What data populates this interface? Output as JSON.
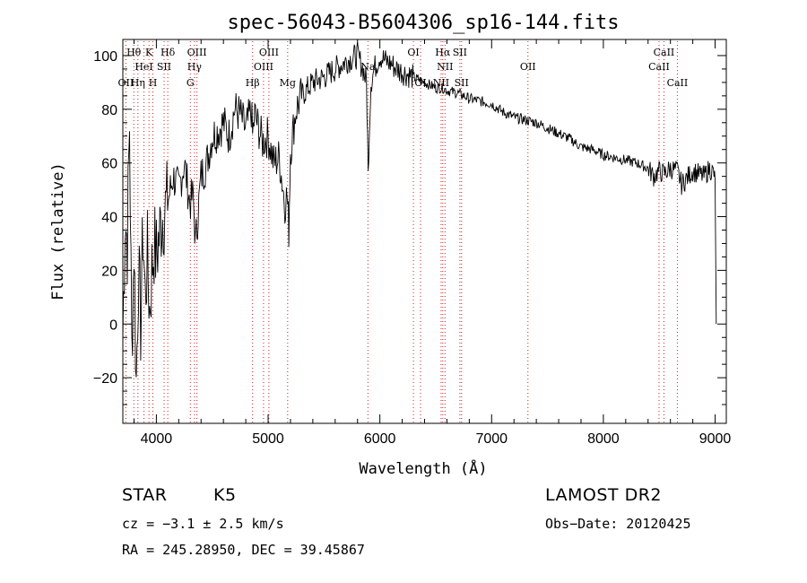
{
  "chart_data": {
    "type": "line",
    "title": "spec-56043-B5604306_sp16-144.fits",
    "xlabel": "Wavelength (Å)",
    "ylabel": "Flux (relative)",
    "xlim": [
      3700,
      9100
    ],
    "ylim": [
      -37,
      106
    ],
    "x_ticks": [
      4000,
      5000,
      6000,
      7000,
      8000,
      9000
    ],
    "y_ticks": [
      -20,
      0,
      20,
      40,
      60,
      80,
      100
    ],
    "grid": false,
    "series": [
      {
        "x": [
          3700,
          3720,
          3740,
          3760,
          3780,
          3800,
          3820,
          3840,
          3860,
          3880,
          3900,
          3920,
          3940,
          3960,
          3980,
          4000,
          4050,
          4100,
          4150,
          4200,
          4250,
          4300,
          4330,
          4350,
          4380,
          4400,
          4450,
          4500,
          4550,
          4600,
          4650,
          4700,
          4750,
          4800,
          4850,
          4861,
          4880,
          4900,
          4950,
          5000,
          5050,
          5100,
          5150,
          5170,
          5185,
          5200,
          5250,
          5300,
          5400,
          5500,
          5600,
          5700,
          5800,
          5850,
          5880,
          5890,
          5895,
          5900,
          5920,
          5950,
          6000,
          6050,
          6100,
          6150,
          6200,
          6300,
          6400,
          6500,
          6563,
          6600,
          6700,
          6800,
          6900,
          7000,
          7100,
          7200,
          7300,
          7400,
          7500,
          7600,
          7700,
          7800,
          7900,
          8000,
          8100,
          8200,
          8300,
          8400,
          8450,
          8498,
          8542,
          8600,
          8662,
          8700,
          8800,
          8900,
          8950,
          8990,
          9000,
          9010
        ],
        "y": [
          -5,
          40,
          30,
          75,
          -10,
          30,
          -22,
          20,
          0,
          35,
          10,
          25,
          5,
          20,
          30,
          25,
          40,
          45,
          55,
          50,
          60,
          45,
          48,
          30,
          45,
          55,
          60,
          70,
          72,
          75,
          70,
          80,
          78,
          72,
          80,
          70,
          78,
          75,
          68,
          70,
          60,
          62,
          45,
          48,
          35,
          65,
          80,
          85,
          90,
          92,
          95,
          98,
          100,
          95,
          90,
          70,
          55,
          65,
          90,
          95,
          100,
          98,
          97,
          95,
          94,
          92,
          90,
          88,
          88,
          87,
          86,
          84,
          83,
          82,
          79,
          77,
          76,
          75,
          73,
          71,
          69,
          66,
          65,
          63,
          62,
          61,
          60,
          58,
          55,
          57,
          56,
          58,
          57,
          52,
          57,
          55,
          58,
          56,
          52,
          0
        ]
      }
    ],
    "lines": [
      {
        "label": "OII",
        "x": 3727,
        "row": 3
      },
      {
        "label": "Hθ",
        "x": 3798,
        "row": 1
      },
      {
        "label": "Hη",
        "x": 3835,
        "row": 3
      },
      {
        "label": "HeI",
        "x": 3889,
        "row": 2
      },
      {
        "label": "K",
        "x": 3934,
        "row": 1
      },
      {
        "label": "SII",
        "x": 4069,
        "row": 2
      },
      {
        "label": "H",
        "x": 3969,
        "row": 3
      },
      {
        "label": "Hδ",
        "x": 4102,
        "row": 1
      },
      {
        "label": "OIII",
        "x": 4363,
        "row": 1
      },
      {
        "label": "Hγ",
        "x": 4341,
        "row": 2
      },
      {
        "label": "G",
        "x": 4304,
        "row": 3
      },
      {
        "label": "Hβ",
        "x": 4861,
        "row": 3
      },
      {
        "label": "OIII",
        "x": 4959,
        "row": 2
      },
      {
        "label": "OIII",
        "x": 5007,
        "row": 1
      },
      {
        "label": "Mg",
        "x": 5175,
        "row": 3
      },
      {
        "label": "Na",
        "x": 5893,
        "row": 2
      },
      {
        "label": "OI",
        "x": 6300,
        "row": 1
      },
      {
        "label": "OI",
        "x": 6364,
        "row": 3
      },
      {
        "label": "NII",
        "x": 6548,
        "row": 3
      },
      {
        "label": "Hα",
        "x": 6563,
        "row": 1
      },
      {
        "label": "NII",
        "x": 6583,
        "row": 2
      },
      {
        "label": "SII",
        "x": 6716,
        "row": 1
      },
      {
        "label": "SII",
        "x": 6731,
        "row": 3
      },
      {
        "label": "OII",
        "x": 7325,
        "row": 2
      },
      {
        "label": "CaII",
        "x": 8498,
        "row": 2
      },
      {
        "label": "CaII",
        "x": 8542,
        "row": 1
      },
      {
        "label": "CaII",
        "x": 8662,
        "row": 3
      }
    ]
  },
  "info": {
    "object_class": "STAR",
    "subclass": "K5",
    "survey": "LAMOST DR2",
    "cz": "cz = −3.1 ± 2.5 km/s",
    "obs_date": "Obs−Date: 20120425",
    "coords": "RA = 245.28950, DEC =  39.45867"
  }
}
